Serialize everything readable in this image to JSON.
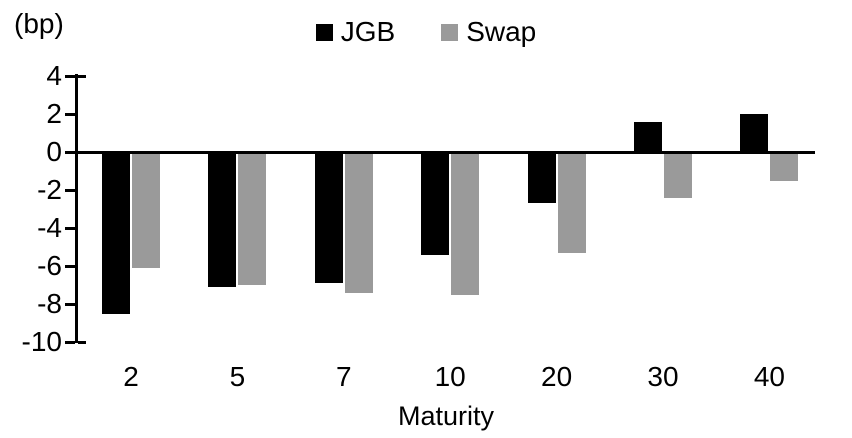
{
  "page": {
    "background": "#ffffff"
  },
  "chart_data": {
    "type": "bar",
    "title": "",
    "unit_label": "(bp)",
    "xlabel": "Maturity",
    "ylabel": "",
    "categories": [
      "2",
      "5",
      "7",
      "10",
      "20",
      "30",
      "40"
    ],
    "series": [
      {
        "name": "JGB",
        "color": "#000000",
        "values": [
          -8.5,
          -7.1,
          -6.9,
          -5.4,
          -2.7,
          1.6,
          2.0
        ]
      },
      {
        "name": "Swap",
        "color": "#9a9a9a",
        "values": [
          -6.1,
          -7.0,
          -7.4,
          -7.5,
          -5.3,
          -2.4,
          -1.5
        ]
      }
    ],
    "y_ticks": [
      4,
      2,
      0,
      -2,
      -4,
      -6,
      -8,
      -10
    ],
    "ylim": [
      -10,
      4
    ],
    "axis_color": "#000000",
    "grid": false,
    "legend_position": "top-center"
  }
}
